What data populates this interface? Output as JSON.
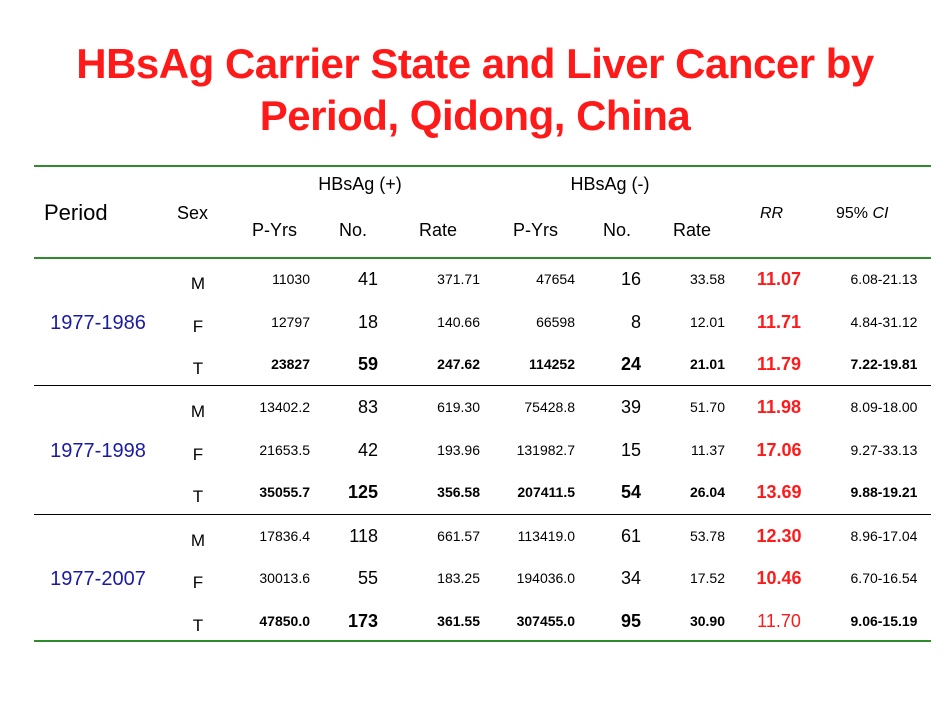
{
  "title_line1": "HBsAg Carrier State and Liver Cancer by",
  "title_line2": "Period, Qidong, China",
  "headers": {
    "period": "Period",
    "sex": "Sex",
    "pos_group": "HBsAg (+)",
    "neg_group": "HBsAg (-)",
    "pyrs": "P-Yrs",
    "no": "No.",
    "rate": "Rate",
    "rr": "RR",
    "ci_prefix": "95% ",
    "ci_italic": "CI"
  },
  "groups": [
    {
      "period": "1977-1986",
      "rows": [
        {
          "sex": "M",
          "pos_pyrs": "11030",
          "pos_no": "41",
          "pos_rate": "371.71",
          "neg_pyrs": "47654",
          "neg_no": "16",
          "neg_rate": "33.58",
          "rr": "11.07",
          "ci": "6.08-21.13"
        },
        {
          "sex": "F",
          "pos_pyrs": "12797",
          "pos_no": "18",
          "pos_rate": "140.66",
          "neg_pyrs": "66598",
          "neg_no": "8",
          "neg_rate": "12.01",
          "rr": "11.71",
          "ci": "4.84-31.12"
        },
        {
          "sex": "T",
          "pos_pyrs": "23827",
          "pos_no": "59",
          "pos_rate": "247.62",
          "neg_pyrs": "114252",
          "neg_no": "24",
          "neg_rate": "21.01",
          "rr": "11.79",
          "ci": "7.22-19.81"
        }
      ]
    },
    {
      "period": "1977-1998",
      "rows": [
        {
          "sex": "M",
          "pos_pyrs": "13402.2",
          "pos_no": "83",
          "pos_rate": "619.30",
          "neg_pyrs": "75428.8",
          "neg_no": "39",
          "neg_rate": "51.70",
          "rr": "11.98",
          "ci": "8.09-18.00"
        },
        {
          "sex": "F",
          "pos_pyrs": "21653.5",
          "pos_no": "42",
          "pos_rate": "193.96",
          "neg_pyrs": "131982.7",
          "neg_no": "15",
          "neg_rate": "11.37",
          "rr": "17.06",
          "ci": "9.27-33.13"
        },
        {
          "sex": "T",
          "pos_pyrs": "35055.7",
          "pos_no": "125",
          "pos_rate": "356.58",
          "neg_pyrs": "207411.5",
          "neg_no": "54",
          "neg_rate": "26.04",
          "rr": "13.69",
          "ci": "9.88-19.21"
        }
      ]
    },
    {
      "period": "1977-2007",
      "rows": [
        {
          "sex": "M",
          "pos_pyrs": "17836.4",
          "pos_no": "118",
          "pos_rate": "661.57",
          "neg_pyrs": "113419.0",
          "neg_no": "61",
          "neg_rate": "53.78",
          "rr": "12.30",
          "ci": "8.96-17.04"
        },
        {
          "sex": "F",
          "pos_pyrs": "30013.6",
          "pos_no": "55",
          "pos_rate": "183.25",
          "neg_pyrs": "194036.0",
          "neg_no": "34",
          "neg_rate": "17.52",
          "rr": "10.46",
          "ci": "6.70-16.54"
        },
        {
          "sex": "T",
          "pos_pyrs": "47850.0",
          "pos_no": "173",
          "pos_rate": "361.55",
          "neg_pyrs": "307455.0",
          "neg_no": "95",
          "neg_rate": "30.90",
          "rr": "11.70",
          "ci": "9.06-15.19"
        }
      ]
    }
  ]
}
